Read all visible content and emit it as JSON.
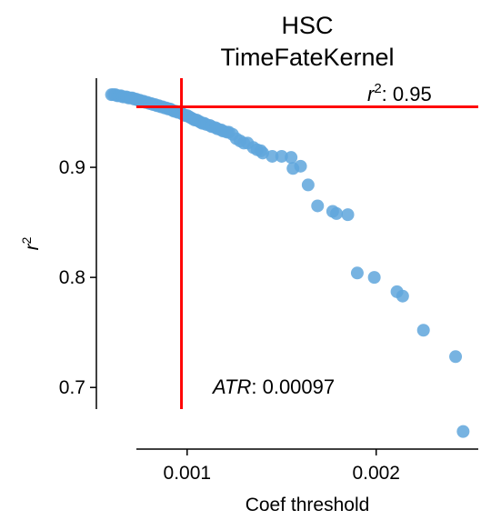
{
  "chart_data": {
    "type": "scatter",
    "title_lines": [
      "HSC",
      "TimeFateKernel"
    ],
    "xlabel": "Coef threshold",
    "ylabel_base": "r",
    "ylabel_sup": "2",
    "xlim": [
      0.00052,
      0.00254
    ],
    "ylim": [
      0.644,
      0.981
    ],
    "xticks": [
      0.001,
      0.002
    ],
    "xtick_labels": [
      "0.001",
      "0.002"
    ],
    "yticks": [
      0.7,
      0.8,
      0.9
    ],
    "ytick_labels": [
      "0.7",
      "0.8",
      "0.9"
    ],
    "grid": false,
    "point_color": "#5fa6dc",
    "threshold_color": "#ff0000",
    "vline_x": 0.00097,
    "hline_y": 0.955,
    "annotations": {
      "r2": {
        "base": "r",
        "sup": "2",
        "text": ": 0.95"
      },
      "atr": {
        "name": "ATR",
        "text": ": 0.00097"
      }
    },
    "points": [
      [
        0.0006,
        0.966
      ],
      [
        0.00061,
        0.966
      ],
      [
        0.00062,
        0.966
      ],
      [
        0.00063,
        0.965
      ],
      [
        0.00064,
        0.965
      ],
      [
        0.00065,
        0.965
      ],
      [
        0.00066,
        0.964
      ],
      [
        0.00067,
        0.964
      ],
      [
        0.00068,
        0.964
      ],
      [
        0.00069,
        0.963
      ],
      [
        0.0007,
        0.963
      ],
      [
        0.00071,
        0.963
      ],
      [
        0.00072,
        0.962
      ],
      [
        0.00073,
        0.962
      ],
      [
        0.00074,
        0.961
      ],
      [
        0.00075,
        0.961
      ],
      [
        0.00076,
        0.96
      ],
      [
        0.00077,
        0.96
      ],
      [
        0.00078,
        0.959
      ],
      [
        0.00079,
        0.959
      ],
      [
        0.0008,
        0.958
      ],
      [
        0.00081,
        0.958
      ],
      [
        0.00082,
        0.957
      ],
      [
        0.00083,
        0.957
      ],
      [
        0.00084,
        0.956
      ],
      [
        0.00085,
        0.956
      ],
      [
        0.00086,
        0.955
      ],
      [
        0.00087,
        0.955
      ],
      [
        0.00088,
        0.954
      ],
      [
        0.00089,
        0.954
      ],
      [
        0.0009,
        0.953
      ],
      [
        0.00091,
        0.953
      ],
      [
        0.00092,
        0.952
      ],
      [
        0.00093,
        0.951
      ],
      [
        0.00094,
        0.951
      ],
      [
        0.00095,
        0.95
      ],
      [
        0.00096,
        0.95
      ],
      [
        0.00097,
        0.949
      ],
      [
        0.00098,
        0.948
      ],
      [
        0.00099,
        0.947
      ],
      [
        0.001,
        0.947
      ],
      [
        0.00101,
        0.946
      ],
      [
        0.00102,
        0.945
      ],
      [
        0.00103,
        0.944
      ],
      [
        0.00104,
        0.943
      ],
      [
        0.00105,
        0.943
      ],
      [
        0.00106,
        0.942
      ],
      [
        0.00107,
        0.941
      ],
      [
        0.00108,
        0.94
      ],
      [
        0.00109,
        0.94
      ],
      [
        0.0011,
        0.939
      ],
      [
        0.00112,
        0.938
      ],
      [
        0.00113,
        0.937
      ],
      [
        0.00115,
        0.936
      ],
      [
        0.00116,
        0.935
      ],
      [
        0.00118,
        0.934
      ],
      [
        0.00119,
        0.933
      ],
      [
        0.00121,
        0.932
      ],
      [
        0.00122,
        0.932
      ],
      [
        0.00124,
        0.93
      ],
      [
        0.00126,
        0.926
      ],
      [
        0.00128,
        0.924
      ],
      [
        0.0013,
        0.922
      ],
      [
        0.00132,
        0.922
      ],
      [
        0.00135,
        0.918
      ],
      [
        0.00137,
        0.916
      ],
      [
        0.00139,
        0.915
      ],
      [
        0.0014,
        0.913
      ],
      [
        0.00145,
        0.91
      ],
      [
        0.0015,
        0.91
      ],
      [
        0.00155,
        0.909
      ],
      [
        0.0016,
        0.901
      ],
      [
        0.00156,
        0.899
      ],
      [
        0.00164,
        0.884
      ],
      [
        0.00169,
        0.865
      ],
      [
        0.00177,
        0.86
      ],
      [
        0.00179,
        0.858
      ],
      [
        0.00185,
        0.857
      ],
      [
        0.0019,
        0.804
      ],
      [
        0.00199,
        0.8
      ],
      [
        0.00211,
        0.787
      ],
      [
        0.00214,
        0.783
      ],
      [
        0.00225,
        0.752
      ],
      [
        0.00242,
        0.728
      ],
      [
        0.00246,
        0.66
      ]
    ]
  }
}
